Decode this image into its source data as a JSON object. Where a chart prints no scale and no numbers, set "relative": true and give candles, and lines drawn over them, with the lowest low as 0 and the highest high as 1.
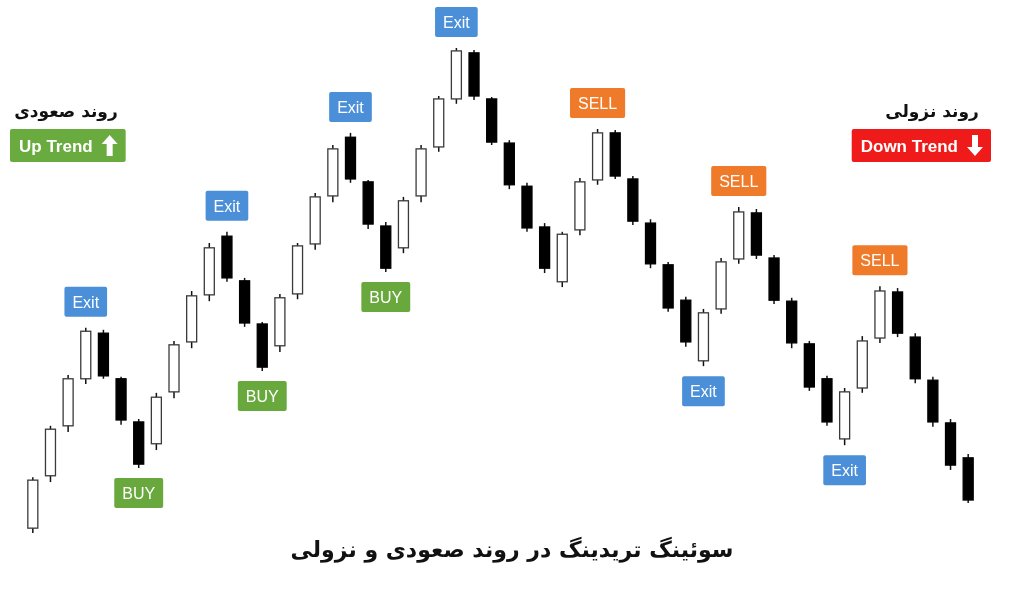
{
  "chart_data": {
    "type": "candlestick",
    "relative": true,
    "title": "سوئینگ تریدینگ در روند صعودی و نزولی",
    "categories": [
      null,
      null,
      null,
      null,
      null,
      null,
      null,
      null,
      null,
      null,
      null,
      null,
      null,
      null,
      null,
      null,
      null,
      null,
      null,
      null,
      null,
      null,
      null,
      null,
      null,
      null,
      null,
      null,
      null,
      null,
      null,
      null,
      null,
      null,
      null,
      null,
      null,
      null,
      null,
      null,
      null,
      null,
      null,
      null,
      null,
      null,
      null,
      null,
      null,
      null,
      null,
      null,
      null,
      null
    ],
    "ohlc": [
      [
        0.01,
        0.115,
        0,
        0.109
      ],
      [
        0.118,
        0.221,
        0.105,
        0.214
      ],
      [
        0.221,
        0.326,
        0.208,
        0.318
      ],
      [
        0.318,
        0.423,
        0.307,
        0.416
      ],
      [
        0.412,
        0.419,
        0.318,
        0.324
      ],
      [
        0.318,
        0.322,
        0.223,
        0.233
      ],
      [
        0.229,
        0.235,
        0.134,
        0.142
      ],
      [
        0.184,
        0.289,
        0.171,
        0.28
      ],
      [
        0.291,
        0.396,
        0.278,
        0.388
      ],
      [
        0.394,
        0.499,
        0.381,
        0.489
      ],
      [
        0.491,
        0.598,
        0.478,
        0.588
      ],
      [
        0.612,
        0.621,
        0.518,
        0.526
      ],
      [
        0.52,
        0.526,
        0.425,
        0.433
      ],
      [
        0.431,
        0.435,
        0.334,
        0.342
      ],
      [
        0.386,
        0.493,
        0.373,
        0.485
      ],
      [
        0.493,
        0.598,
        0.482,
        0.592
      ],
      [
        0.596,
        0.701,
        0.584,
        0.693
      ],
      [
        0.695,
        0.8,
        0.682,
        0.792
      ],
      [
        0.816,
        0.825,
        0.722,
        0.73
      ],
      [
        0.724,
        0.728,
        0.627,
        0.637
      ],
      [
        0.633,
        0.641,
        0.538,
        0.546
      ],
      [
        0.588,
        0.693,
        0.577,
        0.685
      ],
      [
        0.695,
        0.8,
        0.682,
        0.792
      ],
      [
        0.796,
        0.901,
        0.786,
        0.895
      ],
      [
        0.895,
        1,
        0.885,
        0.994
      ],
      [
        0.99,
        0.996,
        0.893,
        0.901
      ],
      [
        0.895,
        0.899,
        0.8,
        0.806
      ],
      [
        0.804,
        0.81,
        0.709,
        0.718
      ],
      [
        0.715,
        0.722,
        0.621,
        0.629
      ],
      [
        0.631,
        0.639,
        0.536,
        0.546
      ],
      [
        0.518,
        0.621,
        0.507,
        0.616
      ],
      [
        0.625,
        0.732,
        0.614,
        0.724
      ],
      [
        0.728,
        0.833,
        0.718,
        0.825
      ],
      [
        0.825,
        0.831,
        0.73,
        0.736
      ],
      [
        0.73,
        0.736,
        0.635,
        0.643
      ],
      [
        0.639,
        0.647,
        0.546,
        0.555
      ],
      [
        0.553,
        0.559,
        0.456,
        0.464
      ],
      [
        0.48,
        0.487,
        0.384,
        0.394
      ],
      [
        0.355,
        0.462,
        0.344,
        0.454
      ],
      [
        0.462,
        0.567,
        0.452,
        0.559
      ],
      [
        0.565,
        0.672,
        0.555,
        0.662
      ],
      [
        0.66,
        0.668,
        0.565,
        0.573
      ],
      [
        0.567,
        0.573,
        0.472,
        0.48
      ],
      [
        0.478,
        0.485,
        0.381,
        0.392
      ],
      [
        0.39,
        0.396,
        0.293,
        0.301
      ],
      [
        0.318,
        0.324,
        0.221,
        0.229
      ],
      [
        0.194,
        0.299,
        0.181,
        0.291
      ],
      [
        0.299,
        0.406,
        0.289,
        0.396
      ],
      [
        0.402,
        0.509,
        0.392,
        0.499
      ],
      [
        0.497,
        0.505,
        0.404,
        0.412
      ],
      [
        0.404,
        0.412,
        0.309,
        0.318
      ],
      [
        0.315,
        0.322,
        0.219,
        0.229
      ],
      [
        0.227,
        0.235,
        0.13,
        0.14
      ],
      [
        0.155,
        0.163,
        0.062,
        0.068
      ]
    ],
    "annotations": [
      "روند صعودی",
      "Up Trend",
      "روند نزولی",
      "Down Trend",
      {
        "text": "Exit",
        "y": 0.423
      },
      {
        "text": "BUY",
        "y": 0.134
      },
      {
        "text": "Exit",
        "y": 0.621
      },
      {
        "text": "BUY",
        "y": 0.334
      },
      {
        "text": "Exit",
        "y": 0.825
      },
      {
        "text": "BUY",
        "y": 0.538
      },
      {
        "text": "Exit",
        "y": 1
      },
      {
        "text": "SELL",
        "y": 0.833
      },
      {
        "text": "Exit",
        "y": 0.344
      },
      {
        "text": "SELL",
        "y": 0.672
      },
      {
        "text": "Exit",
        "y": 0.181
      },
      {
        "text": "SELL",
        "y": 0.509
      }
    ]
  }
}
